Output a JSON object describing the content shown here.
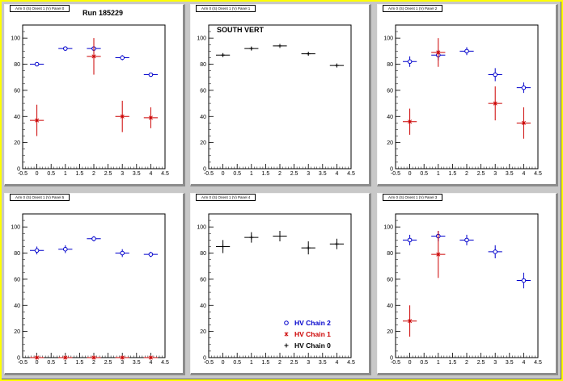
{
  "colors": {
    "chain2": "#0000cc",
    "chain1": "#cc0000",
    "chain0": "#000000"
  },
  "chart_data": [
    {
      "type": "scatter",
      "pad_title": "Arm 0 (S) Orient 1 (V) Panel 0",
      "annotation": "Run 185229",
      "xlim": [
        -0.5,
        4.5
      ],
      "ylim": [
        0,
        110
      ],
      "x_ticks": [
        "-0.5",
        "0",
        "0.5",
        "1",
        "1.5",
        "2",
        "2.5",
        "3",
        "3.5",
        "4",
        "4.5"
      ],
      "y_ticks": [
        "0",
        "20",
        "40",
        "60",
        "80",
        "100"
      ],
      "series": [
        {
          "name": "HV Chain 2",
          "marker": "circle",
          "color": "#0000cc",
          "points": [
            {
              "x": 0,
              "y": 80,
              "ey": 1
            },
            {
              "x": 1,
              "y": 92,
              "ey": 1
            },
            {
              "x": 2,
              "y": 92,
              "ey": 2
            },
            {
              "x": 3,
              "y": 85,
              "ey": 2
            },
            {
              "x": 4,
              "y": 72,
              "ey": 1
            }
          ]
        },
        {
          "name": "HV Chain 1",
          "marker": "star",
          "color": "#cc0000",
          "points": [
            {
              "x": 0,
              "y": 37,
              "ey": 12
            },
            {
              "x": 2,
              "y": 86,
              "ey": 14
            },
            {
              "x": 3,
              "y": 40,
              "ey": 12
            },
            {
              "x": 4,
              "y": 39,
              "ey": 8
            }
          ]
        }
      ]
    },
    {
      "type": "scatter",
      "pad_title": "Arm 0 (S) Orient 1 (V) Panel 1",
      "annotation": "SOUTH VERT",
      "xlim": [
        -0.5,
        4.5
      ],
      "ylim": [
        0,
        110
      ],
      "x_ticks": [
        "-0.5",
        "0",
        "0.5",
        "1",
        "1.5",
        "2",
        "2.5",
        "3",
        "3.5",
        "4",
        "4.5"
      ],
      "y_ticks": [
        "0",
        "20",
        "40",
        "60",
        "80",
        "100"
      ],
      "series": [
        {
          "name": "HV Chain 0",
          "marker": "plus",
          "color": "#000000",
          "points": [
            {
              "x": 0,
              "y": 87,
              "ey": 1
            },
            {
              "x": 1,
              "y": 92,
              "ey": 1
            },
            {
              "x": 2,
              "y": 94,
              "ey": 1
            },
            {
              "x": 3,
              "y": 88,
              "ey": 1
            },
            {
              "x": 4,
              "y": 79,
              "ey": 1
            }
          ]
        }
      ]
    },
    {
      "type": "scatter",
      "pad_title": "Arm 0 (S) Orient 1 (V) Panel 2",
      "annotation": "",
      "xlim": [
        -0.5,
        4.5
      ],
      "ylim": [
        0,
        110
      ],
      "x_ticks": [
        "-0.5",
        "0",
        "0.5",
        "1",
        "1.5",
        "2",
        "2.5",
        "3",
        "3.5",
        "4",
        "4.5"
      ],
      "y_ticks": [
        "0",
        "20",
        "40",
        "60",
        "80",
        "100"
      ],
      "series": [
        {
          "name": "HV Chain 2",
          "marker": "circle",
          "color": "#0000cc",
          "points": [
            {
              "x": 0,
              "y": 82,
              "ey": 4
            },
            {
              "x": 1,
              "y": 87,
              "ey": 4
            },
            {
              "x": 2,
              "y": 90,
              "ey": 3
            },
            {
              "x": 3,
              "y": 72,
              "ey": 5
            },
            {
              "x": 4,
              "y": 62,
              "ey": 4
            }
          ]
        },
        {
          "name": "HV Chain 1",
          "marker": "star",
          "color": "#cc0000",
          "points": [
            {
              "x": 0,
              "y": 36,
              "ey": 10
            },
            {
              "x": 1,
              "y": 89,
              "ey": 11
            },
            {
              "x": 3,
              "y": 50,
              "ey": 13
            },
            {
              "x": 4,
              "y": 35,
              "ey": 12
            }
          ]
        }
      ]
    },
    {
      "type": "scatter",
      "pad_title": "Arm 0 (S) Orient 1 (V) Panel 5",
      "annotation": "",
      "xlim": [
        -0.5,
        4.5
      ],
      "ylim": [
        0,
        110
      ],
      "x_ticks": [
        "-0.5",
        "0",
        "0.5",
        "1",
        "1.5",
        "2",
        "2.5",
        "3",
        "3.5",
        "4",
        "4.5"
      ],
      "y_ticks": [
        "0",
        "20",
        "40",
        "60",
        "80",
        "100"
      ],
      "series": [
        {
          "name": "HV Chain 2",
          "marker": "circle",
          "color": "#0000cc",
          "points": [
            {
              "x": 0,
              "y": 82,
              "ey": 3
            },
            {
              "x": 1,
              "y": 83,
              "ey": 3
            },
            {
              "x": 2,
              "y": 91,
              "ey": 2
            },
            {
              "x": 3,
              "y": 80,
              "ey": 3
            },
            {
              "x": 4,
              "y": 79,
              "ey": 2
            }
          ]
        },
        {
          "name": "HV Chain 1",
          "marker": "star",
          "color": "#cc0000",
          "points": [
            {
              "x": 0,
              "y": 0,
              "ey": 0
            },
            {
              "x": 1,
              "y": 0,
              "ey": 0
            },
            {
              "x": 2,
              "y": 0,
              "ey": 0
            },
            {
              "x": 3,
              "y": 0,
              "ey": 0
            },
            {
              "x": 4,
              "y": 0,
              "ey": 0
            }
          ]
        }
      ]
    },
    {
      "type": "scatter",
      "pad_title": "Arm 0 (S) Orient 1 (V) Panel 4",
      "annotation": "",
      "xlim": [
        -0.5,
        4.5
      ],
      "ylim": [
        0,
        110
      ],
      "x_ticks": [
        "-0.5",
        "0",
        "0.5",
        "1",
        "1.5",
        "2",
        "2.5",
        "3",
        "3.5",
        "4",
        "4.5"
      ],
      "y_ticks": [
        "0",
        "20",
        "40",
        "60",
        "80",
        "100"
      ],
      "legend": [
        "HV Chain 2",
        "HV Chain 1",
        "HV Chain 0"
      ],
      "series": [
        {
          "name": "HV Chain 0",
          "marker": "plus",
          "color": "#000000",
          "points": [
            {
              "x": 0,
              "y": 85,
              "ey": 5
            },
            {
              "x": 1,
              "y": 92,
              "ey": 4
            },
            {
              "x": 2,
              "y": 93,
              "ey": 4
            },
            {
              "x": 3,
              "y": 84,
              "ey": 5
            },
            {
              "x": 4,
              "y": 87,
              "ey": 4
            }
          ]
        }
      ]
    },
    {
      "type": "scatter",
      "pad_title": "Arm 0 (S) Orient 1 (V) Panel 3",
      "annotation": "",
      "xlim": [
        -0.5,
        4.5
      ],
      "ylim": [
        0,
        110
      ],
      "x_ticks": [
        "-0.5",
        "0",
        "0.5",
        "1",
        "1.5",
        "2",
        "2.5",
        "3",
        "3.5",
        "4",
        "4.5"
      ],
      "y_ticks": [
        "0",
        "20",
        "40",
        "60",
        "80",
        "100"
      ],
      "series": [
        {
          "name": "HV Chain 2",
          "marker": "circle",
          "color": "#0000cc",
          "points": [
            {
              "x": 0,
              "y": 90,
              "ey": 4
            },
            {
              "x": 1,
              "y": 93,
              "ey": 4
            },
            {
              "x": 2,
              "y": 90,
              "ey": 4
            },
            {
              "x": 3,
              "y": 81,
              "ey": 5
            },
            {
              "x": 4,
              "y": 59,
              "ey": 6
            }
          ]
        },
        {
          "name": "HV Chain 1",
          "marker": "star",
          "color": "#cc0000",
          "points": [
            {
              "x": 0,
              "y": 28,
              "ey": 12
            },
            {
              "x": 1,
              "y": 79,
              "ey": 18
            }
          ]
        }
      ]
    }
  ]
}
